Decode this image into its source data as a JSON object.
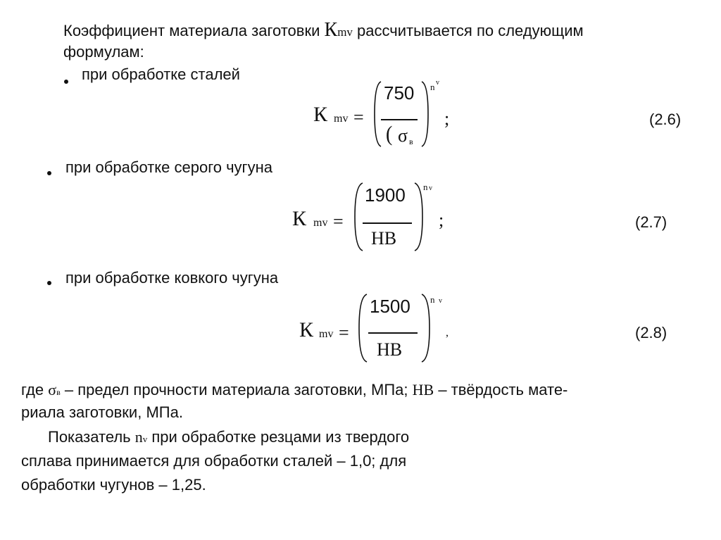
{
  "intro": {
    "line1_prefix": "Коэффициент материала заготовки ",
    "line1_symbol": "К",
    "line1_symbol_sub": "mv",
    "line1_suffix": " рассчитывается по следующим",
    "line2": "формулам:"
  },
  "formulas": [
    {
      "bullet": "при обработке сталей",
      "lhs": "К",
      "lhs_sub": "mv",
      "eq": "=",
      "numerator": "750",
      "denominator": "σ",
      "denominator_sub": "в",
      "exponent": "n",
      "exponent_sub": "v",
      "end": ";",
      "number": "(2.6)"
    },
    {
      "bullet": "при обработке серого чугуна",
      "lhs": "К",
      "lhs_sub": "mv",
      "eq": "=",
      "numerator": "1900",
      "denominator": "НВ",
      "exponent": "n",
      "exponent_sub": "v",
      "end": ";",
      "number": "(2.7)"
    },
    {
      "bullet": "при обработке ковкого чугуна",
      "lhs": "К",
      "lhs_sub": "mv",
      "eq": "=",
      "numerator": "1500",
      "denominator": "НВ",
      "exponent": "n",
      "exponent_sub": "v",
      "end": ",",
      "number": "(2.8)"
    }
  ],
  "where": {
    "prefix": "где ",
    "sigma": "σ",
    "sigma_sub": "в",
    "text1": " – предел прочности материала заготовки, МПа; ",
    "hb": "НВ",
    "text2": " – твёрдость мате-",
    "line2": "риала заготовки, МПа."
  },
  "exponent_para": {
    "prefix": "Показатель ",
    "n": "n",
    "n_sub": "v",
    "line1_suffix": " при обработке резцами из твердого",
    "line2": "сплава принимается для обработки сталей – 1,0; для",
    "line3": "обработки чугунов – 1,25."
  }
}
